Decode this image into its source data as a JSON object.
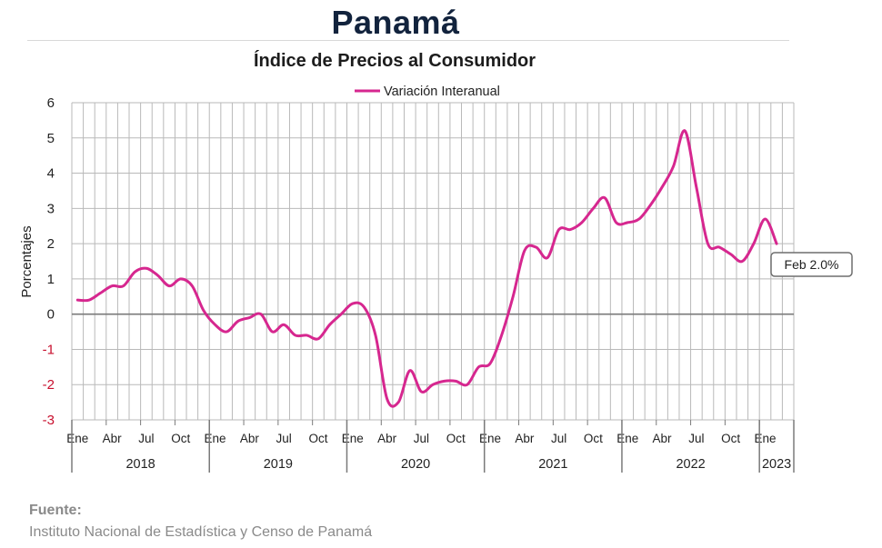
{
  "header": {
    "title": "Panamá",
    "subtitle": "Índice de Precios al Consumidor"
  },
  "source": {
    "title": "Fuente:",
    "text": "Instituto Nacional de Estadística y Censo de Panamá"
  },
  "chart_data": {
    "type": "line",
    "ylabel": "Porcentajes",
    "ylim": [
      -3,
      6
    ],
    "yticks": [
      -3,
      -2,
      -1,
      0,
      1,
      2,
      3,
      4,
      5,
      6
    ],
    "negative_tick_color": "#c8102e",
    "grid": true,
    "legend_position": "top-center",
    "series_color": "#d6278f",
    "series": [
      {
        "name": "Variación Interanual",
        "values": [
          0.4,
          0.4,
          0.6,
          0.8,
          0.8,
          1.2,
          1.3,
          1.1,
          0.8,
          1.0,
          0.8,
          0.1,
          -0.3,
          -0.5,
          -0.2,
          -0.1,
          0.0,
          -0.5,
          -0.3,
          -0.6,
          -0.6,
          -0.7,
          -0.3,
          0.0,
          0.3,
          0.2,
          -0.6,
          -2.4,
          -2.5,
          -1.6,
          -2.2,
          -2.0,
          -1.9,
          -1.9,
          -2.0,
          -1.5,
          -1.4,
          -0.6,
          0.5,
          1.8,
          1.9,
          1.6,
          2.4,
          2.4,
          2.6,
          3.0,
          3.3,
          2.6,
          2.6,
          2.7,
          3.1,
          3.6,
          4.2,
          5.2,
          3.6,
          2.0,
          1.9,
          1.7,
          1.5,
          2.0,
          2.7,
          2.0
        ]
      }
    ],
    "month_labels": [
      "Ene",
      "Abr",
      "Jul",
      "Oct"
    ],
    "year_labels": [
      "2018",
      "2019",
      "2020",
      "2021",
      "2022",
      "2023"
    ],
    "annotation": {
      "text": "Feb 2.0%",
      "month_index": 61,
      "value": 2.0
    }
  }
}
